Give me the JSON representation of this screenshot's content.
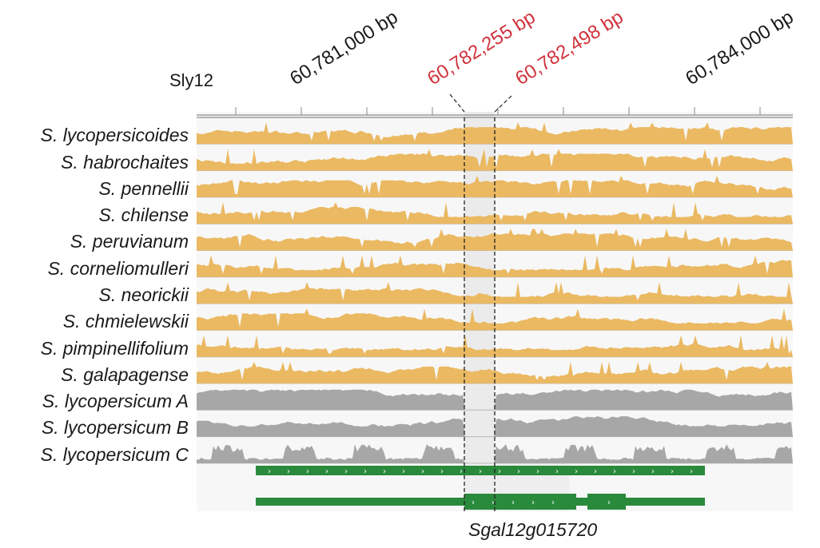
{
  "chromosome": "Sly12",
  "coordinates": {
    "ticks": [
      {
        "label": "60,781,000 bp",
        "color": "#1a1a1a"
      },
      {
        "label": "60,782,255 bp",
        "color": "#d0323c"
      },
      {
        "label": "60,782,498 bp",
        "color": "#d0323c"
      },
      {
        "label": "60,784,000 bp",
        "color": "#1a1a1a"
      }
    ]
  },
  "colors": {
    "wild": "#eab962",
    "cultivated": "#a7a7a7",
    "gene": "#2a8a3c",
    "track_bg": "#f4f4f4",
    "highlight": "#ebebeb"
  },
  "tracks": [
    {
      "label": "S. lycopersicoides",
      "group": "wild"
    },
    {
      "label": "S. habrochaites",
      "group": "wild"
    },
    {
      "label": "S. pennellii",
      "group": "wild"
    },
    {
      "label": "S. chilense",
      "group": "wild"
    },
    {
      "label": "S. peruvianum",
      "group": "wild"
    },
    {
      "label": "S. corneliomulleri",
      "group": "wild"
    },
    {
      "label": "S. neorickii",
      "group": "wild"
    },
    {
      "label": "S. chmielewskii",
      "group": "wild"
    },
    {
      "label": "S. pimpinellifolium",
      "group": "wild"
    },
    {
      "label": "S. galapagense",
      "group": "wild"
    },
    {
      "label": "S. lycopersicum A",
      "group": "cultivated"
    },
    {
      "label": "S. lycopersicum B",
      "group": "cultivated"
    },
    {
      "label": "S. lycopersicum C",
      "group": "cultivated"
    }
  ],
  "gene": {
    "name": "Sgal12g015720"
  }
}
